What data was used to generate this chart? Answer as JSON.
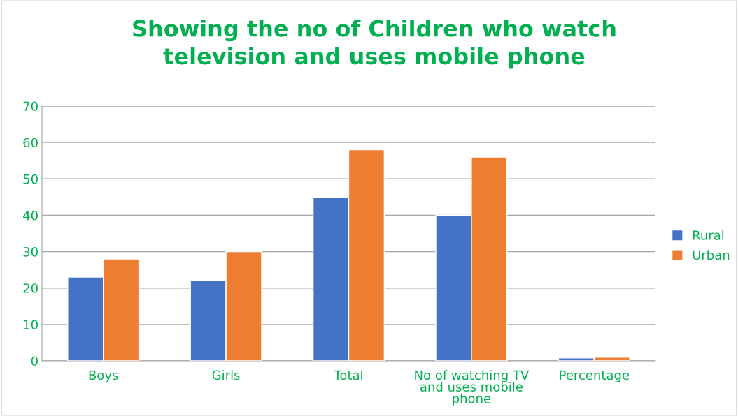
{
  "chart_data": {
    "type": "bar",
    "title": "Showing the no of Children who watch\ntelevision and uses mobile phone",
    "categories": [
      "Boys",
      "Girls",
      "Total",
      "No of watching TV\nand uses mobile\nphone",
      "Percentage"
    ],
    "series": [
      {
        "name": "Rural",
        "color": "#4472c4",
        "values": [
          23,
          22,
          45,
          40,
          0.8
        ]
      },
      {
        "name": "Urban",
        "color": "#ed7d31",
        "values": [
          28,
          30,
          58,
          56,
          1
        ]
      }
    ],
    "ylim": [
      0,
      70
    ],
    "yticks": [
      0,
      10,
      20,
      30,
      40,
      50,
      60,
      70
    ],
    "grid": "y",
    "legend": "right"
  }
}
